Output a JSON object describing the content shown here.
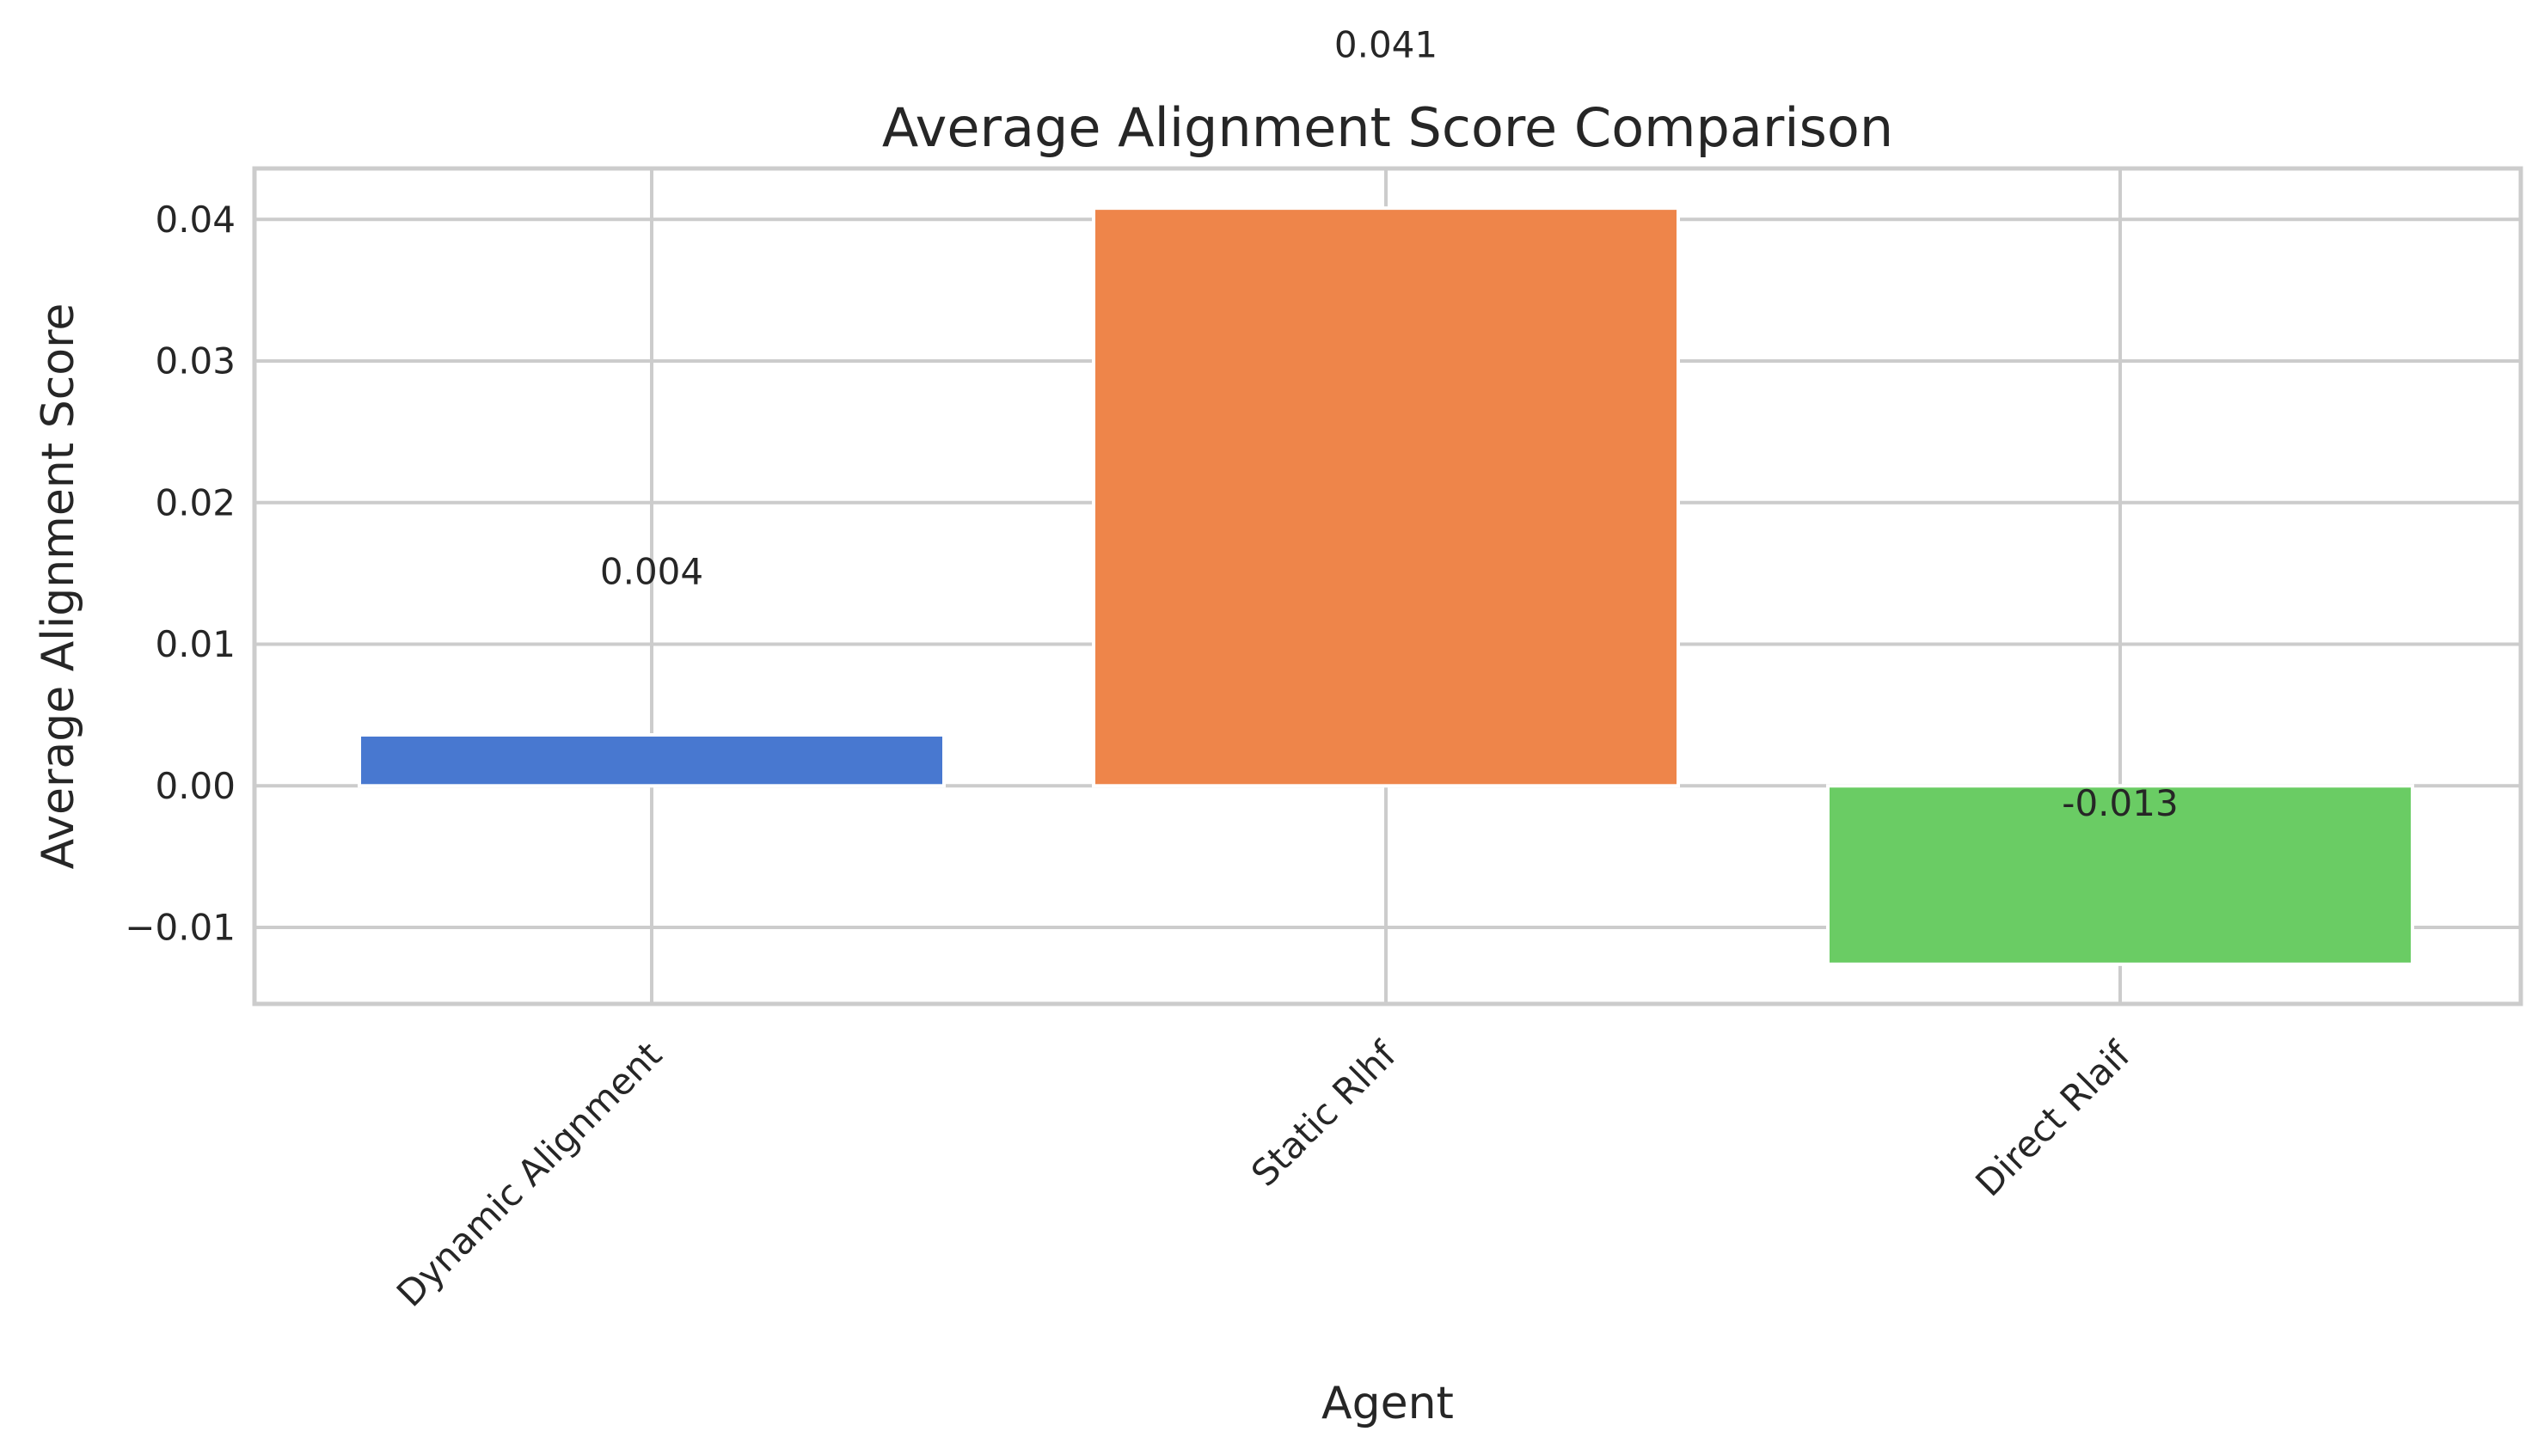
{
  "chart_data": {
    "type": "bar",
    "title": "Average Alignment Score Comparison",
    "xlabel": "Agent",
    "ylabel": "Average Alignment Score",
    "categories": [
      "Dynamic Alignment",
      "Static Rlhf",
      "Direct Rlaif"
    ],
    "values": [
      0.0036,
      0.0408,
      -0.0126
    ],
    "value_labels": [
      "0.004",
      "0.041",
      "-0.013"
    ],
    "colors": [
      "#4878d0",
      "#ee854a",
      "#6acc64"
    ],
    "ylim": [
      -0.0154,
      0.0436
    ],
    "yticks": [
      -0.01,
      0.0,
      0.01,
      0.02,
      0.03,
      0.04
    ],
    "ytick_labels": [
      "−0.01",
      "0.00",
      "0.01",
      "0.02",
      "0.03",
      "0.04"
    ],
    "x_tick_rotation_deg": 45,
    "grid": true
  }
}
